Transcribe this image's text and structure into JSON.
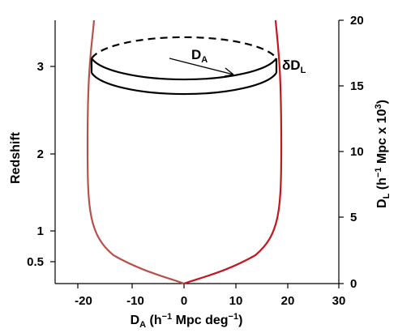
{
  "figure": {
    "left_axis": {
      "label": "Redshift",
      "ticks": [
        "0.5",
        "1",
        "2",
        "3"
      ],
      "tick_values": [
        0.5,
        1,
        2,
        3
      ]
    },
    "right_axis": {
      "label_main": "D",
      "label_sub": "L",
      "label_units": " (h",
      "label_units_sup": "−1",
      "label_units_tail": " Mpc x 10",
      "label_units_sup2": "3",
      "label_close": ")",
      "ticks": [
        "0",
        "5",
        "10",
        "15",
        "20"
      ],
      "tick_values": [
        0,
        5,
        10,
        15,
        20
      ]
    },
    "bottom_axis": {
      "label_main": "D",
      "label_sub": "A",
      "label_units": " (h",
      "label_units_sup": "−1",
      "label_units_mid": " Mpc deg",
      "label_units_sup2": "−1",
      "label_close": ")",
      "ticks": [
        "-20",
        "-10",
        "0",
        "10",
        "20",
        "30"
      ],
      "tick_values": [
        -20,
        -10,
        0,
        10,
        20,
        30
      ]
    },
    "annotations": {
      "da_main": "D",
      "da_sub": "A",
      "ddl_main": "δD",
      "ddl_sub": "L"
    },
    "colors": {
      "left_curve": "#b5524a",
      "right_curve": "#c4161c",
      "ellipse": "#000000"
    }
  }
}
